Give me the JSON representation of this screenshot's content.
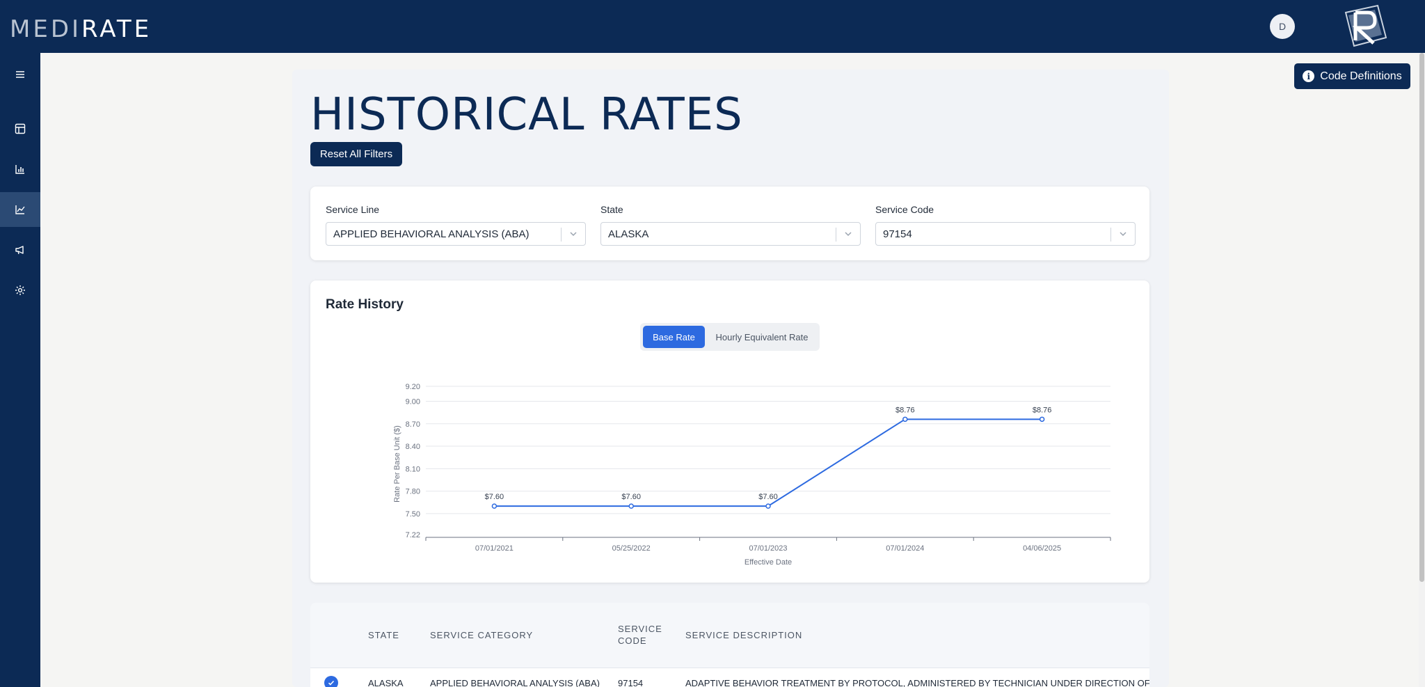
{
  "header": {
    "logo_dim": "MEDI",
    "logo_main": "RATE",
    "avatar_initial": "D"
  },
  "sidebar": {
    "items": [
      {
        "name": "menu"
      },
      {
        "name": "table"
      },
      {
        "name": "bar-chart"
      },
      {
        "name": "line-chart",
        "active": true
      },
      {
        "name": "megaphone"
      },
      {
        "name": "settings"
      }
    ]
  },
  "page": {
    "title": "HISTORICAL RATES",
    "reset_label": "Reset All Filters",
    "code_definitions_label": "Code Definitions"
  },
  "filters": {
    "service_line": {
      "label": "Service Line",
      "value": "APPLIED BEHAVIORAL ANALYSIS (ABA)"
    },
    "state": {
      "label": "State",
      "value": "ALASKA"
    },
    "service_code": {
      "label": "Service Code",
      "value": "97154"
    }
  },
  "rate_history": {
    "title": "Rate History",
    "toggle": {
      "base": "Base Rate",
      "hourly": "Hourly Equivalent Rate",
      "selected": "Base Rate"
    }
  },
  "chart_data": {
    "type": "line",
    "x": [
      "07/01/2021",
      "05/25/2022",
      "07/01/2023",
      "07/01/2024",
      "04/06/2025"
    ],
    "values": [
      7.6,
      7.6,
      7.6,
      8.76,
      8.76
    ],
    "data_labels": [
      "$7.60",
      "$7.60",
      "$7.60",
      "$8.76",
      "$8.76"
    ],
    "xlabel": "Effective Date",
    "ylabel": "Rate Per Base Unit ($)",
    "ylim": [
      7.22,
      9.2
    ],
    "yticks": [
      "9.20",
      "9.00",
      "8.70",
      "8.40",
      "8.10",
      "7.80",
      "7.50",
      "7.22"
    ],
    "grid": true,
    "color": "#2d6ae0"
  },
  "table": {
    "headers": {
      "state": "STATE",
      "category": "SERVICE CATEGORY",
      "code_line1": "SERVICE",
      "code_line2": "CODE",
      "description": "SERVICE DESCRIPTION"
    },
    "rows": [
      {
        "state": "ALASKA",
        "category": "APPLIED BEHAVIORAL ANALYSIS (ABA)",
        "code": "97154",
        "description": "ADAPTIVE BEHAVIOR TREATMENT BY PROTOCOL, ADMINISTERED BY TECHNICIAN UNDER DIRECTION OF QHP TO"
      }
    ]
  }
}
